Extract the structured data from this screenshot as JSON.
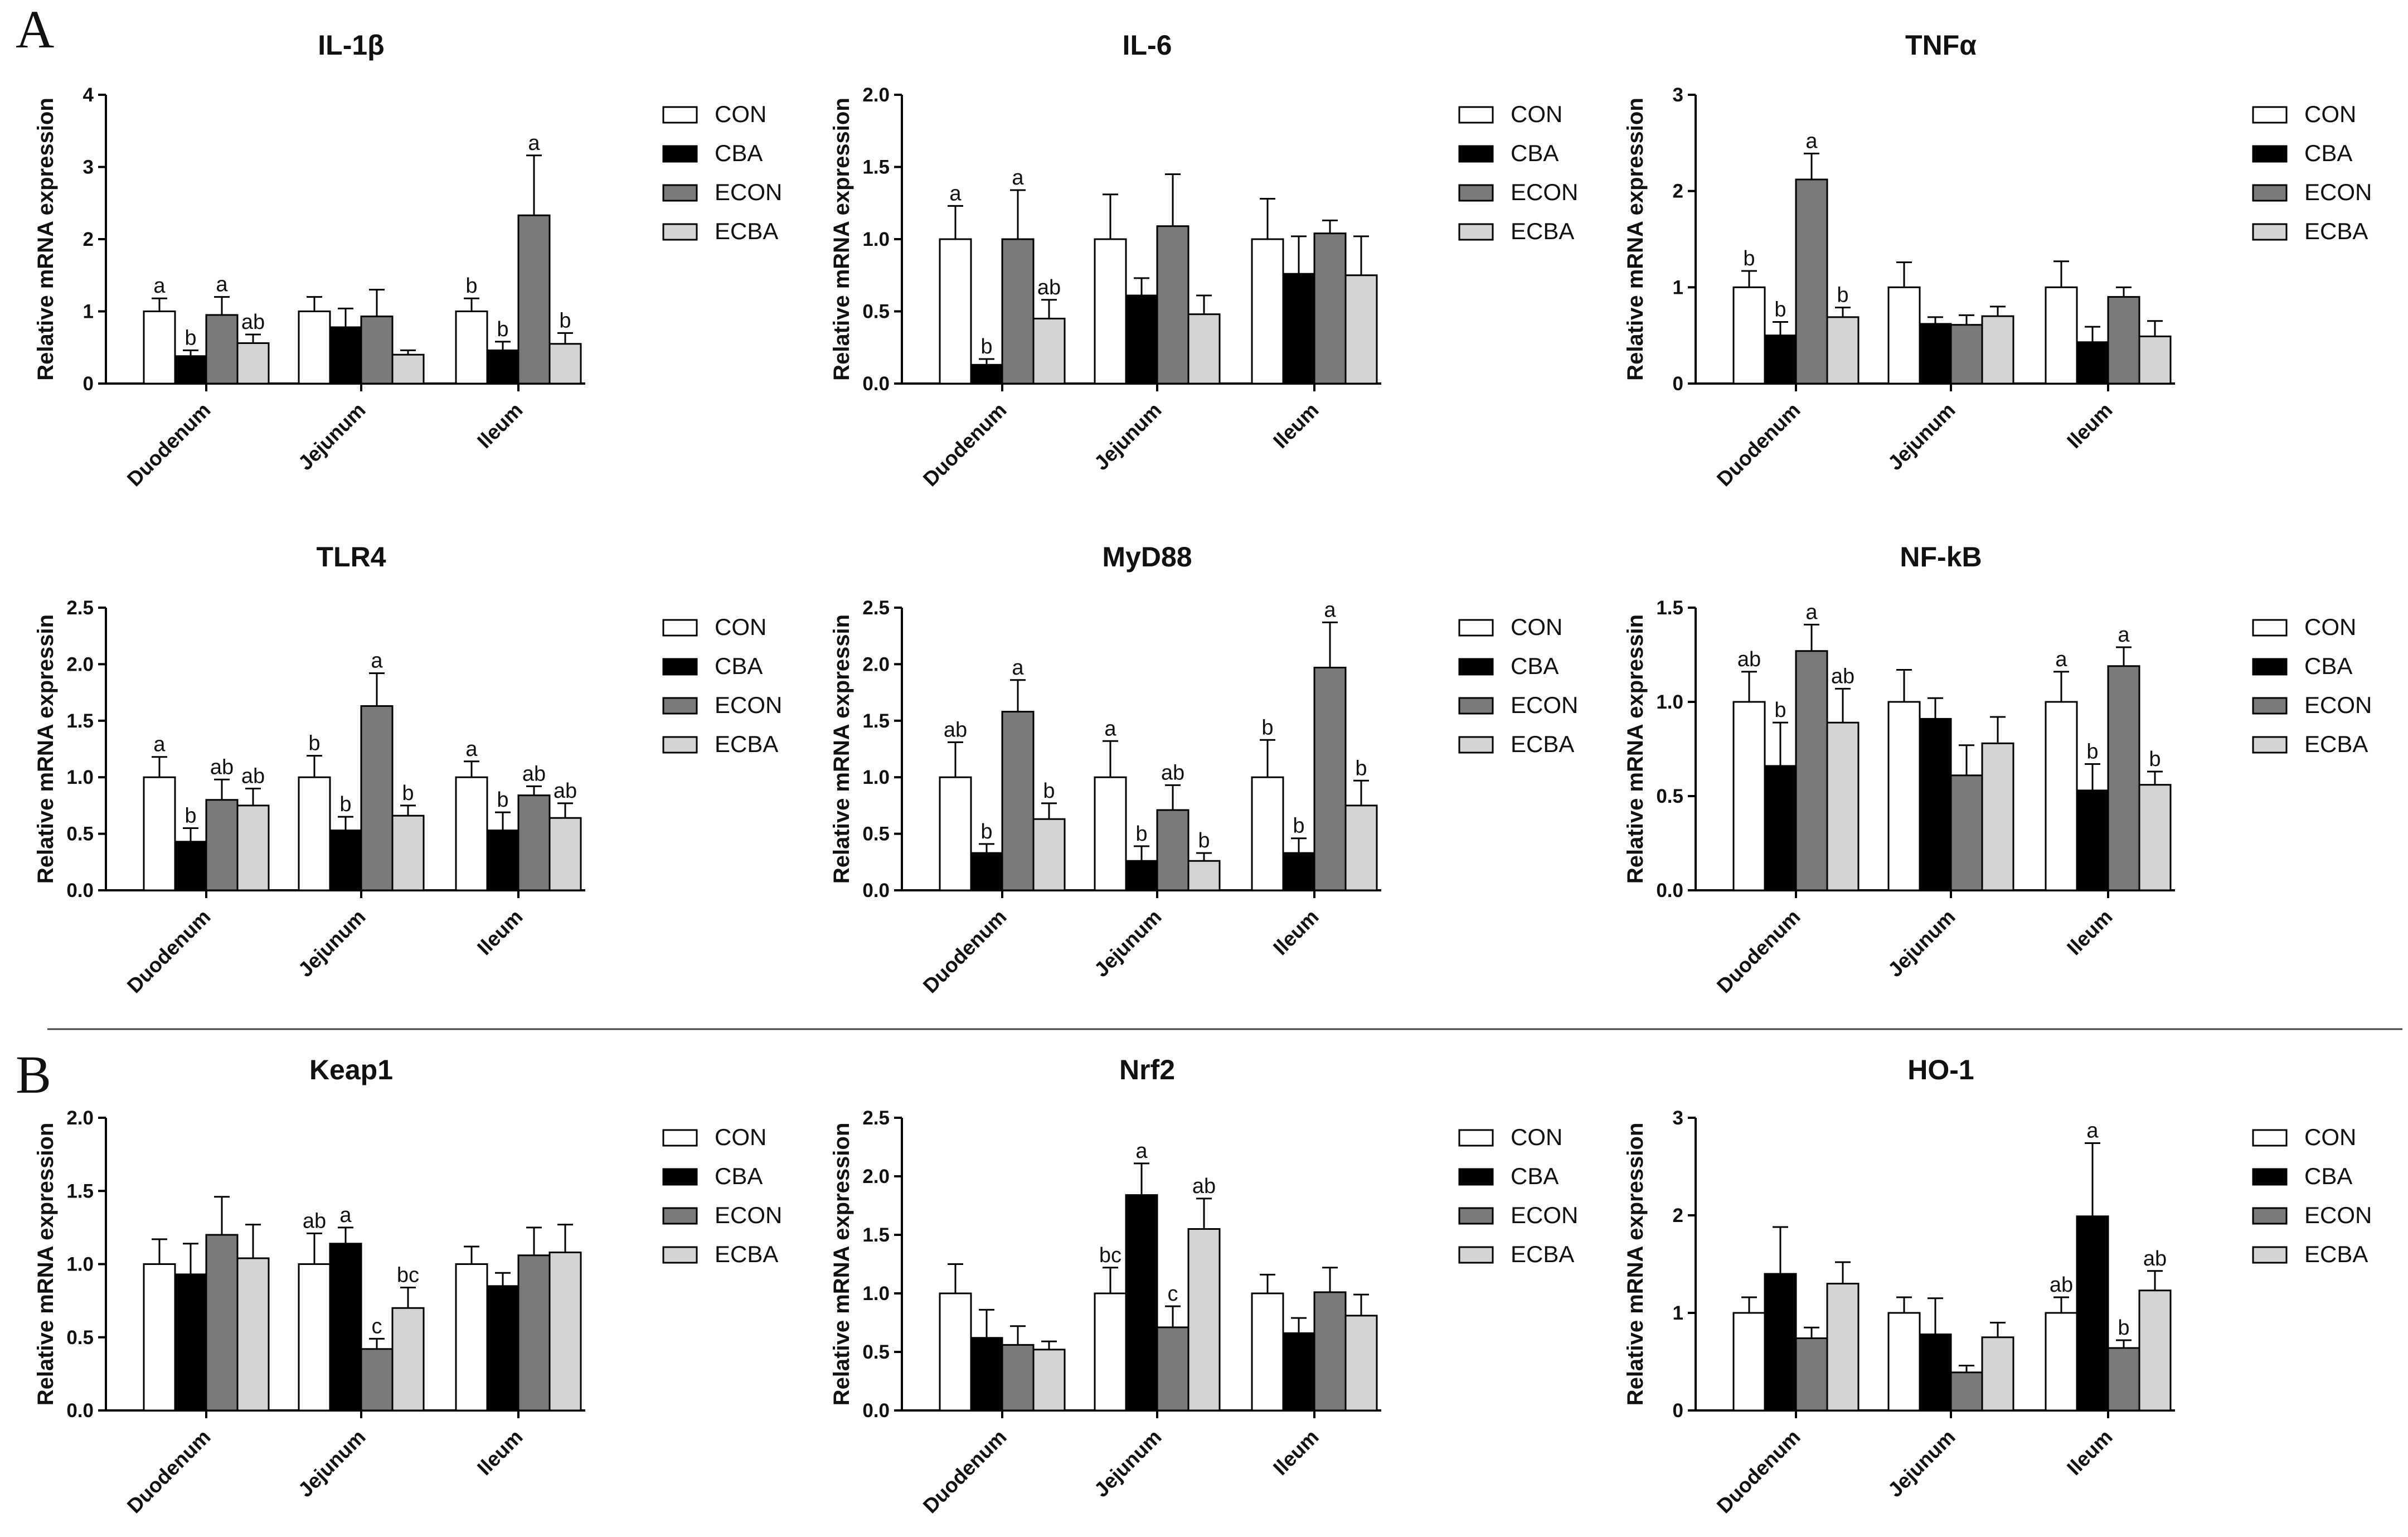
{
  "panel_labels": {
    "A": "A",
    "B": "B"
  },
  "series_colors": {
    "CON": "#ffffff",
    "CBA": "#000000",
    "ECON": "#7a7a7a",
    "ECBA": "#d4d4d4"
  },
  "chart_data": [
    {
      "type": "bar",
      "title": "IL-1β",
      "ylabel": "Relative mRNA expression",
      "categories": [
        "Duodenum",
        "Jejunum",
        "Ileum"
      ],
      "ylim": [
        0,
        4
      ],
      "yticks": [
        "0",
        "1",
        "2",
        "3",
        "4"
      ],
      "series": [
        {
          "name": "CON",
          "values": [
            1.0,
            1.0,
            1.0
          ],
          "errors": [
            0.18,
            0.2,
            0.18
          ],
          "labels": [
            "a",
            "",
            "b"
          ]
        },
        {
          "name": "CBA",
          "values": [
            0.38,
            0.78,
            0.46
          ],
          "errors": [
            0.08,
            0.26,
            0.12
          ],
          "labels": [
            "b",
            "",
            "b"
          ]
        },
        {
          "name": "ECON",
          "values": [
            0.95,
            0.93,
            2.33
          ],
          "errors": [
            0.25,
            0.37,
            0.83
          ],
          "labels": [
            "a",
            "",
            "a"
          ]
        },
        {
          "name": "ECBA",
          "values": [
            0.56,
            0.4,
            0.55
          ],
          "errors": [
            0.12,
            0.06,
            0.15
          ],
          "labels": [
            "ab",
            "",
            "b"
          ]
        }
      ]
    },
    {
      "type": "bar",
      "title": "IL-6",
      "ylabel": "Relative mRNA expression",
      "categories": [
        "Duodenum",
        "Jejunum",
        "Ileum"
      ],
      "ylim": [
        0,
        2
      ],
      "yticks": [
        "0.0",
        "0.5",
        "1.0",
        "1.5",
        "2.0"
      ],
      "series": [
        {
          "name": "CON",
          "values": [
            1.0,
            1.0,
            1.0
          ],
          "errors": [
            0.23,
            0.31,
            0.28
          ],
          "labels": [
            "a",
            "",
            ""
          ]
        },
        {
          "name": "CBA",
          "values": [
            0.13,
            0.61,
            0.76
          ],
          "errors": [
            0.04,
            0.12,
            0.26
          ],
          "labels": [
            "b",
            "",
            ""
          ]
        },
        {
          "name": "ECON",
          "values": [
            1.0,
            1.09,
            1.04
          ],
          "errors": [
            0.34,
            0.36,
            0.09
          ],
          "labels": [
            "a",
            "",
            ""
          ]
        },
        {
          "name": "ECBA",
          "values": [
            0.45,
            0.48,
            0.75
          ],
          "errors": [
            0.13,
            0.13,
            0.27
          ],
          "labels": [
            "ab",
            "",
            ""
          ]
        }
      ]
    },
    {
      "type": "bar",
      "title": "TNFα",
      "ylabel": "Relative mRNA expression",
      "categories": [
        "Duodenum",
        "Jejunum",
        "Ileum"
      ],
      "ylim": [
        0,
        3
      ],
      "yticks": [
        "0",
        "1",
        "2",
        "3"
      ],
      "series": [
        {
          "name": "CON",
          "values": [
            1.0,
            1.0,
            1.0
          ],
          "errors": [
            0.17,
            0.26,
            0.27
          ],
          "labels": [
            "b",
            "",
            ""
          ]
        },
        {
          "name": "CBA",
          "values": [
            0.5,
            0.62,
            0.43
          ],
          "errors": [
            0.14,
            0.07,
            0.16
          ],
          "labels": [
            "b",
            "",
            ""
          ]
        },
        {
          "name": "ECON",
          "values": [
            2.12,
            0.61,
            0.9
          ],
          "errors": [
            0.27,
            0.1,
            0.1
          ],
          "labels": [
            "a",
            "",
            ""
          ]
        },
        {
          "name": "ECBA",
          "values": [
            0.69,
            0.7,
            0.49
          ],
          "errors": [
            0.1,
            0.1,
            0.16
          ],
          "labels": [
            "b",
            "",
            ""
          ]
        }
      ]
    },
    {
      "type": "bar",
      "title": "TLR4",
      "ylabel": "Relative mRNA expressin",
      "categories": [
        "Duodenum",
        "Jejunum",
        "Ileum"
      ],
      "ylim": [
        0,
        2.5
      ],
      "yticks": [
        "0.0",
        "0.5",
        "1.0",
        "1.5",
        "2.0",
        "2.5"
      ],
      "series": [
        {
          "name": "CON",
          "values": [
            1.0,
            1.0,
            1.0
          ],
          "errors": [
            0.18,
            0.19,
            0.14
          ],
          "labels": [
            "a",
            "b",
            "a"
          ]
        },
        {
          "name": "CBA",
          "values": [
            0.43,
            0.53,
            0.53
          ],
          "errors": [
            0.12,
            0.12,
            0.16
          ],
          "labels": [
            "b",
            "b",
            "b"
          ]
        },
        {
          "name": "ECON",
          "values": [
            0.8,
            1.63,
            0.84
          ],
          "errors": [
            0.18,
            0.29,
            0.08
          ],
          "labels": [
            "ab",
            "a",
            "ab"
          ]
        },
        {
          "name": "ECBA",
          "values": [
            0.75,
            0.66,
            0.64
          ],
          "errors": [
            0.15,
            0.09,
            0.13
          ],
          "labels": [
            "ab",
            "b",
            "ab"
          ]
        }
      ]
    },
    {
      "type": "bar",
      "title": "MyD88",
      "ylabel": "Relative mRNA expressin",
      "categories": [
        "Duodenum",
        "Jejunum",
        "Ileum"
      ],
      "ylim": [
        0,
        2.5
      ],
      "yticks": [
        "0.0",
        "0.5",
        "1.0",
        "1.5",
        "2.0",
        "2.5"
      ],
      "series": [
        {
          "name": "CON",
          "values": [
            1.0,
            1.0,
            1.0
          ],
          "errors": [
            0.31,
            0.32,
            0.33
          ],
          "labels": [
            "ab",
            "a",
            "b"
          ]
        },
        {
          "name": "CBA",
          "values": [
            0.33,
            0.26,
            0.33
          ],
          "errors": [
            0.08,
            0.13,
            0.13
          ],
          "labels": [
            "b",
            "b",
            "b"
          ]
        },
        {
          "name": "ECON",
          "values": [
            1.58,
            0.71,
            1.97
          ],
          "errors": [
            0.28,
            0.22,
            0.4
          ],
          "labels": [
            "a",
            "ab",
            "a"
          ]
        },
        {
          "name": "ECBA",
          "values": [
            0.63,
            0.26,
            0.75
          ],
          "errors": [
            0.14,
            0.07,
            0.22
          ],
          "labels": [
            "b",
            "b",
            "b"
          ]
        }
      ]
    },
    {
      "type": "bar",
      "title": "NF-kB",
      "ylabel": "Relative mRNA expressin",
      "categories": [
        "Duodenum",
        "Jejunum",
        "Ileum"
      ],
      "ylim": [
        0,
        1.5
      ],
      "yticks": [
        "0.0",
        "0.5",
        "1.0",
        "1.5"
      ],
      "series": [
        {
          "name": "CON",
          "values": [
            1.0,
            1.0,
            1.0
          ],
          "errors": [
            0.16,
            0.17,
            0.16
          ],
          "labels": [
            "ab",
            "",
            "a"
          ]
        },
        {
          "name": "CBA",
          "values": [
            0.66,
            0.91,
            0.53
          ],
          "errors": [
            0.23,
            0.11,
            0.14
          ],
          "labels": [
            "b",
            "",
            "b"
          ]
        },
        {
          "name": "ECON",
          "values": [
            1.27,
            0.61,
            1.19
          ],
          "errors": [
            0.14,
            0.16,
            0.1
          ],
          "labels": [
            "a",
            "",
            "a"
          ]
        },
        {
          "name": "ECBA",
          "values": [
            0.89,
            0.78,
            0.56
          ],
          "errors": [
            0.18,
            0.14,
            0.07
          ],
          "labels": [
            "ab",
            "",
            "b"
          ]
        }
      ]
    },
    {
      "type": "bar",
      "title": "Keap1",
      "ylabel": "Relative mRNA expression",
      "categories": [
        "Duodenum",
        "Jejunum",
        "Ileum"
      ],
      "ylim": [
        0,
        2
      ],
      "yticks": [
        "0.0",
        "0.5",
        "1.0",
        "1.5",
        "2.0"
      ],
      "series": [
        {
          "name": "CON",
          "values": [
            1.0,
            1.0,
            1.0
          ],
          "errors": [
            0.17,
            0.21,
            0.12
          ],
          "labels": [
            "",
            "ab",
            ""
          ]
        },
        {
          "name": "CBA",
          "values": [
            0.93,
            1.14,
            0.85
          ],
          "errors": [
            0.21,
            0.11,
            0.09
          ],
          "labels": [
            "",
            "a",
            ""
          ]
        },
        {
          "name": "ECON",
          "values": [
            1.2,
            0.42,
            1.06
          ],
          "errors": [
            0.26,
            0.07,
            0.19
          ],
          "labels": [
            "",
            "c",
            ""
          ]
        },
        {
          "name": "ECBA",
          "values": [
            1.04,
            0.7,
            1.08
          ],
          "errors": [
            0.23,
            0.14,
            0.19
          ],
          "labels": [
            "",
            "bc",
            ""
          ]
        }
      ]
    },
    {
      "type": "bar",
      "title": "Nrf2",
      "ylabel": "Relative mRNA expression",
      "categories": [
        "Duodenum",
        "Jejunum",
        "Ileum"
      ],
      "ylim": [
        0,
        2.5
      ],
      "yticks": [
        "0.0",
        "0.5",
        "1.0",
        "1.5",
        "2.0",
        "2.5"
      ],
      "series": [
        {
          "name": "CON",
          "values": [
            1.0,
            1.0,
            1.0
          ],
          "errors": [
            0.25,
            0.22,
            0.16
          ],
          "labels": [
            "",
            "bc",
            ""
          ]
        },
        {
          "name": "CBA",
          "values": [
            0.62,
            1.84,
            0.66
          ],
          "errors": [
            0.24,
            0.27,
            0.13
          ],
          "labels": [
            "",
            "a",
            ""
          ]
        },
        {
          "name": "ECON",
          "values": [
            0.56,
            0.71,
            1.01
          ],
          "errors": [
            0.16,
            0.18,
            0.21
          ],
          "labels": [
            "",
            "c",
            ""
          ]
        },
        {
          "name": "ECBA",
          "values": [
            0.52,
            1.55,
            0.81
          ],
          "errors": [
            0.07,
            0.26,
            0.18
          ],
          "labels": [
            "",
            "ab",
            ""
          ]
        }
      ]
    },
    {
      "type": "bar",
      "title": "HO-1",
      "ylabel": "Relative mRNA expression",
      "categories": [
        "Duodenum",
        "Jejunum",
        "Ileum"
      ],
      "ylim": [
        0,
        3
      ],
      "yticks": [
        "0",
        "1",
        "2",
        "3"
      ],
      "series": [
        {
          "name": "CON",
          "values": [
            1.0,
            1.0,
            1.0
          ],
          "errors": [
            0.16,
            0.16,
            0.16
          ],
          "labels": [
            "",
            "",
            "ab"
          ]
        },
        {
          "name": "CBA",
          "values": [
            1.4,
            0.78,
            1.99
          ],
          "errors": [
            0.48,
            0.37,
            0.75
          ],
          "labels": [
            "",
            "",
            "a"
          ]
        },
        {
          "name": "ECON",
          "values": [
            0.74,
            0.39,
            0.64
          ],
          "errors": [
            0.11,
            0.07,
            0.08
          ],
          "labels": [
            "",
            "",
            "b"
          ]
        },
        {
          "name": "ECBA",
          "values": [
            1.3,
            0.75,
            1.23
          ],
          "errors": [
            0.22,
            0.15,
            0.2
          ],
          "labels": [
            "",
            "",
            "ab"
          ]
        }
      ]
    }
  ]
}
